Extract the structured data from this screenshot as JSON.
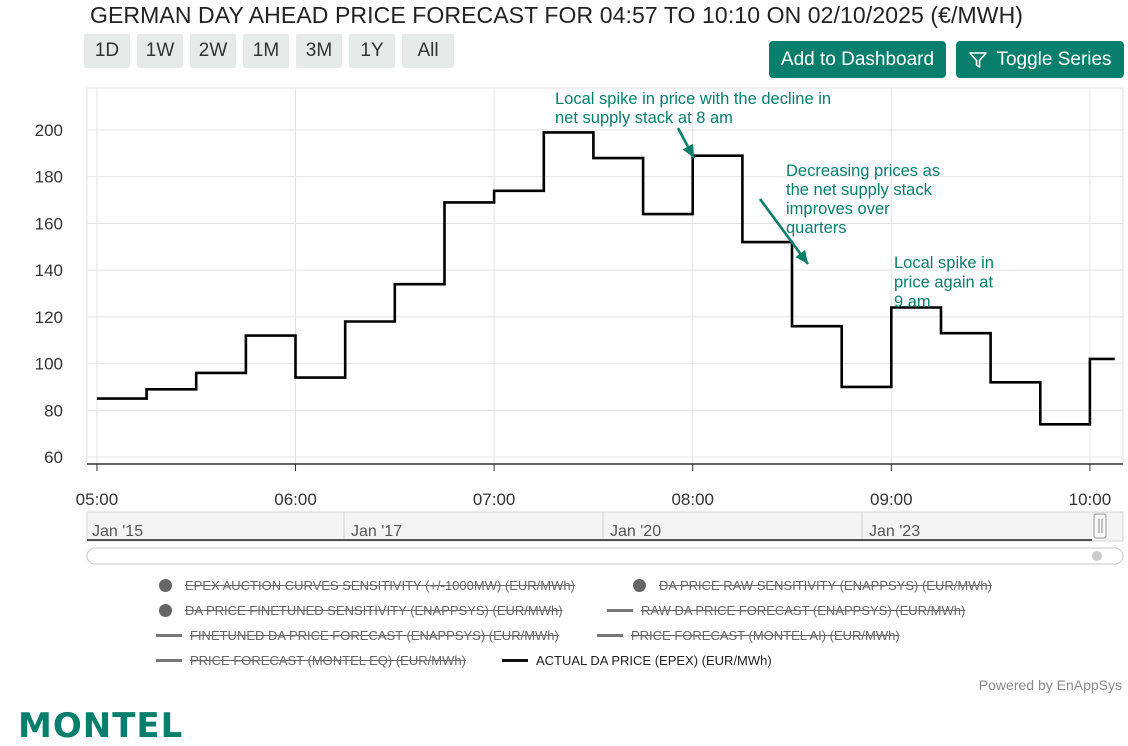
{
  "title": "GERMAN DAY AHEAD PRICE FORECAST FOR 04:57 TO 10:10 ON 02/10/2025 (€/MWH)",
  "range_buttons": [
    "1D",
    "1W",
    "2W",
    "1M",
    "3M",
    "1Y",
    "All"
  ],
  "actions": {
    "add_dashboard": "Add to Dashboard",
    "toggle_series": "Toggle Series"
  },
  "colors": {
    "accent": "#087e6c",
    "series_line": "#000000",
    "annotation": "#087e6c"
  },
  "navigator": {
    "labels": [
      "Jan '15",
      "Jan '17",
      "Jan '20",
      "Jan '23"
    ]
  },
  "legend": [
    {
      "label": "EPEX AUCTION CURVES SENSITIVITY (+/-1000MW) (EUR/MWh)",
      "marker": "dot",
      "hidden": true
    },
    {
      "label": "DA PRICE RAW SENSITIVITY (ENAPPSYS) (EUR/MWh)",
      "marker": "dot",
      "hidden": true
    },
    {
      "label": "DA PRICE FINETUNED SENSITIVITY (ENAPPSYS) (EUR/MWh)",
      "marker": "dot",
      "hidden": true
    },
    {
      "label": "RAW DA PRICE FORECAST (ENAPPSYS) (EUR/MWh)",
      "marker": "line",
      "hidden": true
    },
    {
      "label": "FINETUNED DA PRICE FORECAST (ENAPPSYS) (EUR/MWh)",
      "marker": "line",
      "hidden": true
    },
    {
      "label": "PRICE FORECAST (MONTEL AI) (EUR/MWh)",
      "marker": "line",
      "hidden": true
    },
    {
      "label": "PRICE FORECAST (MONTEL EQ) (EUR/MWh)",
      "marker": "line",
      "hidden": true
    },
    {
      "label": "ACTUAL DA PRICE (EPEX) (EUR/MWh)",
      "marker": "line",
      "hidden": false
    }
  ],
  "powered_by": "Powered by EnAppSys",
  "logo_text": "MONTEL",
  "chart_data": {
    "type": "line",
    "step": true,
    "x_ticks": [
      "05:00",
      "06:00",
      "07:00",
      "08:00",
      "09:00",
      "10:00"
    ],
    "y_ticks": [
      60,
      80,
      100,
      120,
      140,
      160,
      180,
      200
    ],
    "ylim": [
      57,
      218
    ],
    "x_range": [
      "04:57",
      "10:10"
    ],
    "grid": true,
    "series": [
      {
        "name": "ACTUAL DA PRICE (EPEX) (EUR/MWh)",
        "x": [
          "05:00",
          "05:15",
          "05:30",
          "05:45",
          "06:00",
          "06:15",
          "06:30",
          "06:45",
          "07:00",
          "07:15",
          "07:30",
          "07:45",
          "08:00",
          "08:15",
          "08:30",
          "08:45",
          "09:00",
          "09:15",
          "09:30",
          "09:45",
          "10:00"
        ],
        "values": [
          85,
          89,
          96,
          112,
          94,
          118,
          134,
          169,
          174,
          199,
          188,
          164,
          189,
          152,
          116,
          90,
          124,
          113,
          92,
          74,
          102
        ]
      }
    ],
    "annotations": [
      {
        "text": [
          "Local spike in price with the decline in",
          "net supply stack at 8 am"
        ]
      },
      {
        "text": [
          "Decreasing prices as",
          "the net supply stack",
          "improves over",
          "quarters"
        ]
      },
      {
        "text": [
          "Local spike in",
          "price again at",
          "9 am"
        ]
      }
    ]
  }
}
